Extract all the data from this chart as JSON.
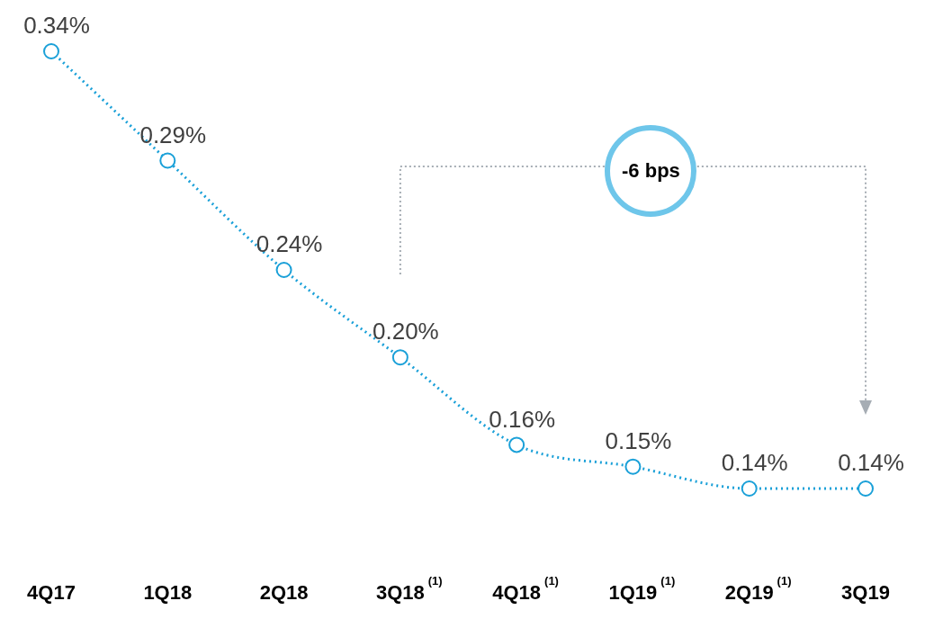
{
  "chart_data": {
    "type": "line",
    "categories": [
      "4Q17",
      "1Q18",
      "2Q18",
      "3Q18$^{(1)}$",
      "4Q18$^{(1)}$",
      "1Q19$^{(1)}$",
      "2Q19$^{(1)}$",
      "3Q19"
    ],
    "series": [
      {
        "color": "#1aa0d8",
        "values": [
          0.34,
          0.29,
          0.24,
          0.2,
          0.16,
          0.15,
          0.14,
          0.14
        ],
        "value_labels": [
          "0.34%",
          "0.29%",
          "0.24%",
          "0.20%",
          "0.16%",
          "0.15%",
          "0.14%",
          "0.14%"
        ]
      }
    ],
    "marker": "circle",
    "line_style": "dotted",
    "grid": false,
    "legend": false,
    "tick_labels": "x",
    "annotations": [
      "-6 bps"
    ]
  }
}
